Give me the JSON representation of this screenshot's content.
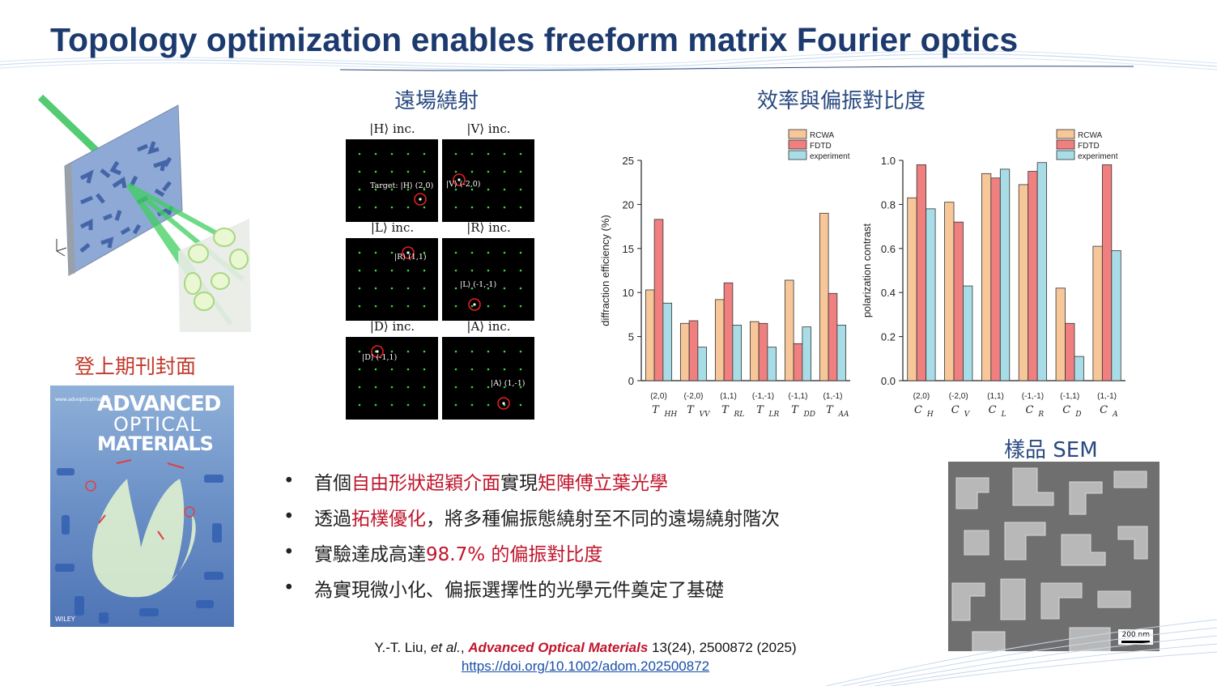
{
  "title": "Topology optimization enables freeform matrix Fourier optics",
  "headings": {
    "farfield": "遠場繞射",
    "efficiency": "效率與偏振對比度",
    "cover": "登上期刊封面",
    "sem": "樣品 SEM"
  },
  "cover": {
    "journal_line1": "ADVANCED",
    "journal_line2": "OPTICAL",
    "journal_line3": "MATERIALS",
    "site": "www.advopticalmat.de",
    "publisher": "WILEY"
  },
  "panels": [
    {
      "label": "|H⟩ inc.",
      "annotation": "Target: |H⟩ (2,0)"
    },
    {
      "label": "|V⟩ inc.",
      "annotation": "|V⟩ (-2,0)"
    },
    {
      "label": "|L⟩ inc.",
      "annotation": "|R⟩ (1,1)"
    },
    {
      "label": "|R⟩ inc.",
      "annotation": "|L⟩ (-1,-1)"
    },
    {
      "label": "|D⟩ inc.",
      "annotation": "|D⟩ (-1,1)"
    },
    {
      "label": "|A⟩ inc.",
      "annotation": "|A⟩ (1,-1)"
    }
  ],
  "bullets": [
    {
      "pre": "首個",
      "hl1": "自由形狀超穎介面",
      "mid": "實現",
      "hl2": "矩陣傅立葉光學",
      "post": ""
    },
    {
      "pre": "透過",
      "hl1": "拓樸優化",
      "mid": "，將多種偏振態繞射至不同的遠場繞射階次",
      "hl2": "",
      "post": ""
    },
    {
      "pre": "實驗達成高達 ",
      "hl1": "98.7% 的偏振對比度",
      "mid": "",
      "hl2": "",
      "post": ""
    },
    {
      "pre": "為實現微小化、偏振選擇性的光學元件奠定了基礎",
      "hl1": "",
      "mid": "",
      "hl2": "",
      "post": ""
    }
  ],
  "reference": {
    "authors": "Y.-T. Liu, ",
    "etal": "et al.",
    "comma": ", ",
    "journal": "Advanced Optical Materials",
    "details": " 13(24), 2500872 (2025)",
    "doi": "https://doi.org/10.1002/adom.202500872"
  },
  "sem_scale": "200 nm",
  "colors": {
    "rcwa": "#f7c79a",
    "fdtd": "#f08080",
    "experiment": "#a8dde8",
    "title": "#1c3a6e",
    "highlight": "#c0152b"
  },
  "chart_data": [
    {
      "type": "bar",
      "ylabel": "diffraction efficiency (%)",
      "ylim": [
        0,
        25
      ],
      "yticks": [
        0,
        5,
        10,
        15,
        20,
        25
      ],
      "categories": [
        "(2,0)",
        "(-2,0)",
        "(1,1)",
        "(-1,-1)",
        "(-1,1)",
        "(1,-1)"
      ],
      "sublabels": [
        "T",
        "T",
        "T",
        "T",
        "T",
        "T"
      ],
      "subscripts": [
        "HH",
        "VV",
        "RL",
        "LR",
        "DD",
        "AA"
      ],
      "series": [
        {
          "name": "RCWA",
          "values": [
            10.3,
            6.5,
            9.2,
            6.7,
            11.4,
            19.0
          ]
        },
        {
          "name": "FDTD",
          "values": [
            18.3,
            6.8,
            11.1,
            6.5,
            4.2,
            9.9
          ]
        },
        {
          "name": "experiment",
          "values": [
            8.8,
            3.8,
            6.3,
            3.8,
            6.1,
            6.3
          ]
        }
      ],
      "legend": "top"
    },
    {
      "type": "bar",
      "ylabel": "polarization contrast",
      "ylim": [
        0,
        1.0
      ],
      "yticks": [
        "0.0",
        "0.2",
        "0.4",
        "0.6",
        "0.8",
        "1.0"
      ],
      "categories": [
        "(2,0)",
        "(-2,0)",
        "(1,1)",
        "(-1,-1)",
        "(-1,1)",
        "(1,-1)"
      ],
      "sublabels": [
        "C",
        "C",
        "C",
        "C",
        "C",
        "C"
      ],
      "subscripts": [
        "H",
        "V",
        "L",
        "R",
        "D",
        "A"
      ],
      "series": [
        {
          "name": "RCWA",
          "values": [
            0.83,
            0.81,
            0.94,
            0.89,
            0.42,
            0.61
          ]
        },
        {
          "name": "FDTD",
          "values": [
            0.98,
            0.72,
            0.92,
            0.95,
            0.26,
            0.98
          ]
        },
        {
          "name": "experiment",
          "values": [
            0.78,
            0.43,
            0.96,
            0.99,
            0.11,
            0.59
          ]
        }
      ],
      "legend": "top"
    }
  ]
}
